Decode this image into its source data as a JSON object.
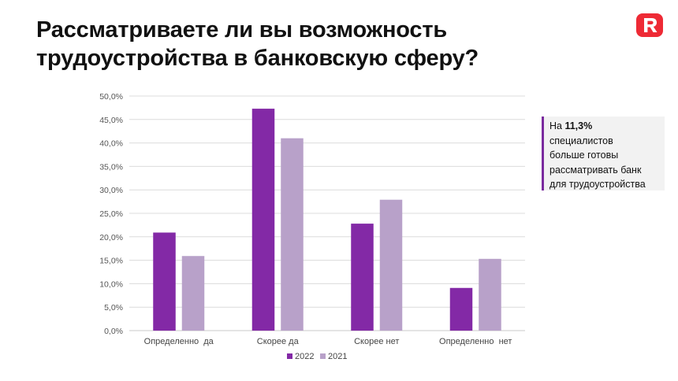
{
  "slide": {
    "title_line1": "Рассматриваете ли вы возможность",
    "title_line2": "трудоустройства в банковскую сферу?",
    "logo_letter": "R",
    "logo_color": "#ee2a35"
  },
  "callout": {
    "prefix": "На ",
    "highlight": "11,3%",
    "line2": "специалистов",
    "line3": "больше готовы",
    "line4": "рассматривать банк",
    "line5": "для трудоустройства",
    "accent_color": "#7a2a9e"
  },
  "chart_data": {
    "type": "bar",
    "categories": [
      "Определенно  да",
      "Скорее да",
      "Скорее нет",
      "Определенно  нет"
    ],
    "series": [
      {
        "name": "2022",
        "values": [
          20.9,
          47.3,
          22.8,
          9.1
        ],
        "color": "#8329a6"
      },
      {
        "name": "2021",
        "values": [
          15.9,
          41.0,
          27.9,
          15.3
        ],
        "color": "#b8a1c9"
      }
    ],
    "ylim": [
      0,
      50
    ],
    "yticks": [
      "0,0%",
      "5,0%",
      "10,0%",
      "15,0%",
      "20,0%",
      "25,0%",
      "30,0%",
      "35,0%",
      "40,0%",
      "45,0%",
      "50,0%"
    ],
    "ytick_step": 5,
    "grid": true,
    "legend_position": "bottom"
  }
}
